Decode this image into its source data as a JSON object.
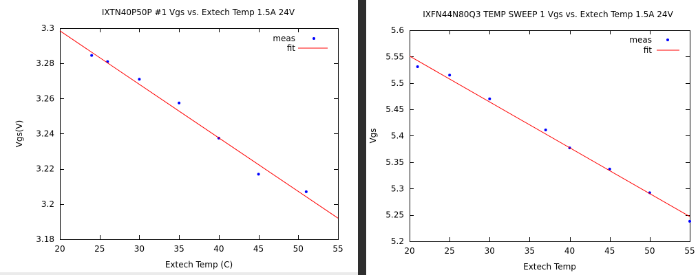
{
  "chart_data": [
    {
      "type": "scatter",
      "title": "IXTN40P50P #1 Vgs vs. Extech Temp 1.5A 24V",
      "xlabel": "Extech Temp (C)",
      "ylabel": "Vgs(V)",
      "xlim": [
        20,
        55
      ],
      "ylim": [
        3.18,
        3.3
      ],
      "xticks": [
        20,
        25,
        30,
        35,
        40,
        45,
        50,
        55
      ],
      "xtick_labels": [
        "20",
        "25",
        "30",
        "35",
        "40",
        "45",
        "50",
        "55"
      ],
      "yticks": [
        3.18,
        3.2,
        3.22,
        3.24,
        3.26,
        3.28,
        3.3
      ],
      "ytick_labels": [
        "3.18",
        "3.2",
        "3.22",
        "3.24",
        "3.26",
        "3.28",
        "3.3"
      ],
      "grid": false,
      "legend_position": "top-right",
      "series": [
        {
          "name": "meas",
          "kind": "points",
          "color": "#0000ff",
          "x": [
            24,
            26,
            30,
            35,
            40,
            45,
            51
          ],
          "y": [
            3.2845,
            3.281,
            3.271,
            3.2575,
            3.2375,
            3.217,
            3.207
          ]
        },
        {
          "name": "fit",
          "kind": "line",
          "color": "#ff0000",
          "x": [
            20,
            55
          ],
          "y": [
            3.2985,
            3.192
          ]
        }
      ]
    },
    {
      "type": "scatter",
      "title": "IXFN44N80Q3 TEMP SWEEP 1 Vgs vs. Extech Temp 1.5A 24V",
      "xlabel": "Extech Temp",
      "ylabel": "Vgs",
      "xlim": [
        20,
        55
      ],
      "ylim": [
        5.2,
        5.6
      ],
      "xticks": [
        20,
        25,
        30,
        35,
        40,
        45,
        50,
        55
      ],
      "xtick_labels": [
        "20",
        "25",
        "30",
        "35",
        "40",
        "45",
        "50",
        "55"
      ],
      "yticks": [
        5.2,
        5.25,
        5.3,
        5.35,
        5.4,
        5.45,
        5.5,
        5.55,
        5.6
      ],
      "ytick_labels": [
        "5.2",
        "5.25",
        "5.3",
        "5.35",
        "5.4",
        "5.45",
        "5.5",
        "5.55",
        "5.6"
      ],
      "grid": false,
      "legend_position": "top-right",
      "series": [
        {
          "name": "meas",
          "kind": "points",
          "color": "#0000ff",
          "x": [
            21,
            25,
            30,
            37,
            40,
            45,
            50,
            55
          ],
          "y": [
            5.531,
            5.515,
            5.47,
            5.411,
            5.377,
            5.337,
            5.292,
            5.238
          ]
        },
        {
          "name": "fit",
          "kind": "line",
          "color": "#ff0000",
          "x": [
            20,
            55
          ],
          "y": [
            5.551,
            5.247
          ]
        }
      ]
    }
  ]
}
